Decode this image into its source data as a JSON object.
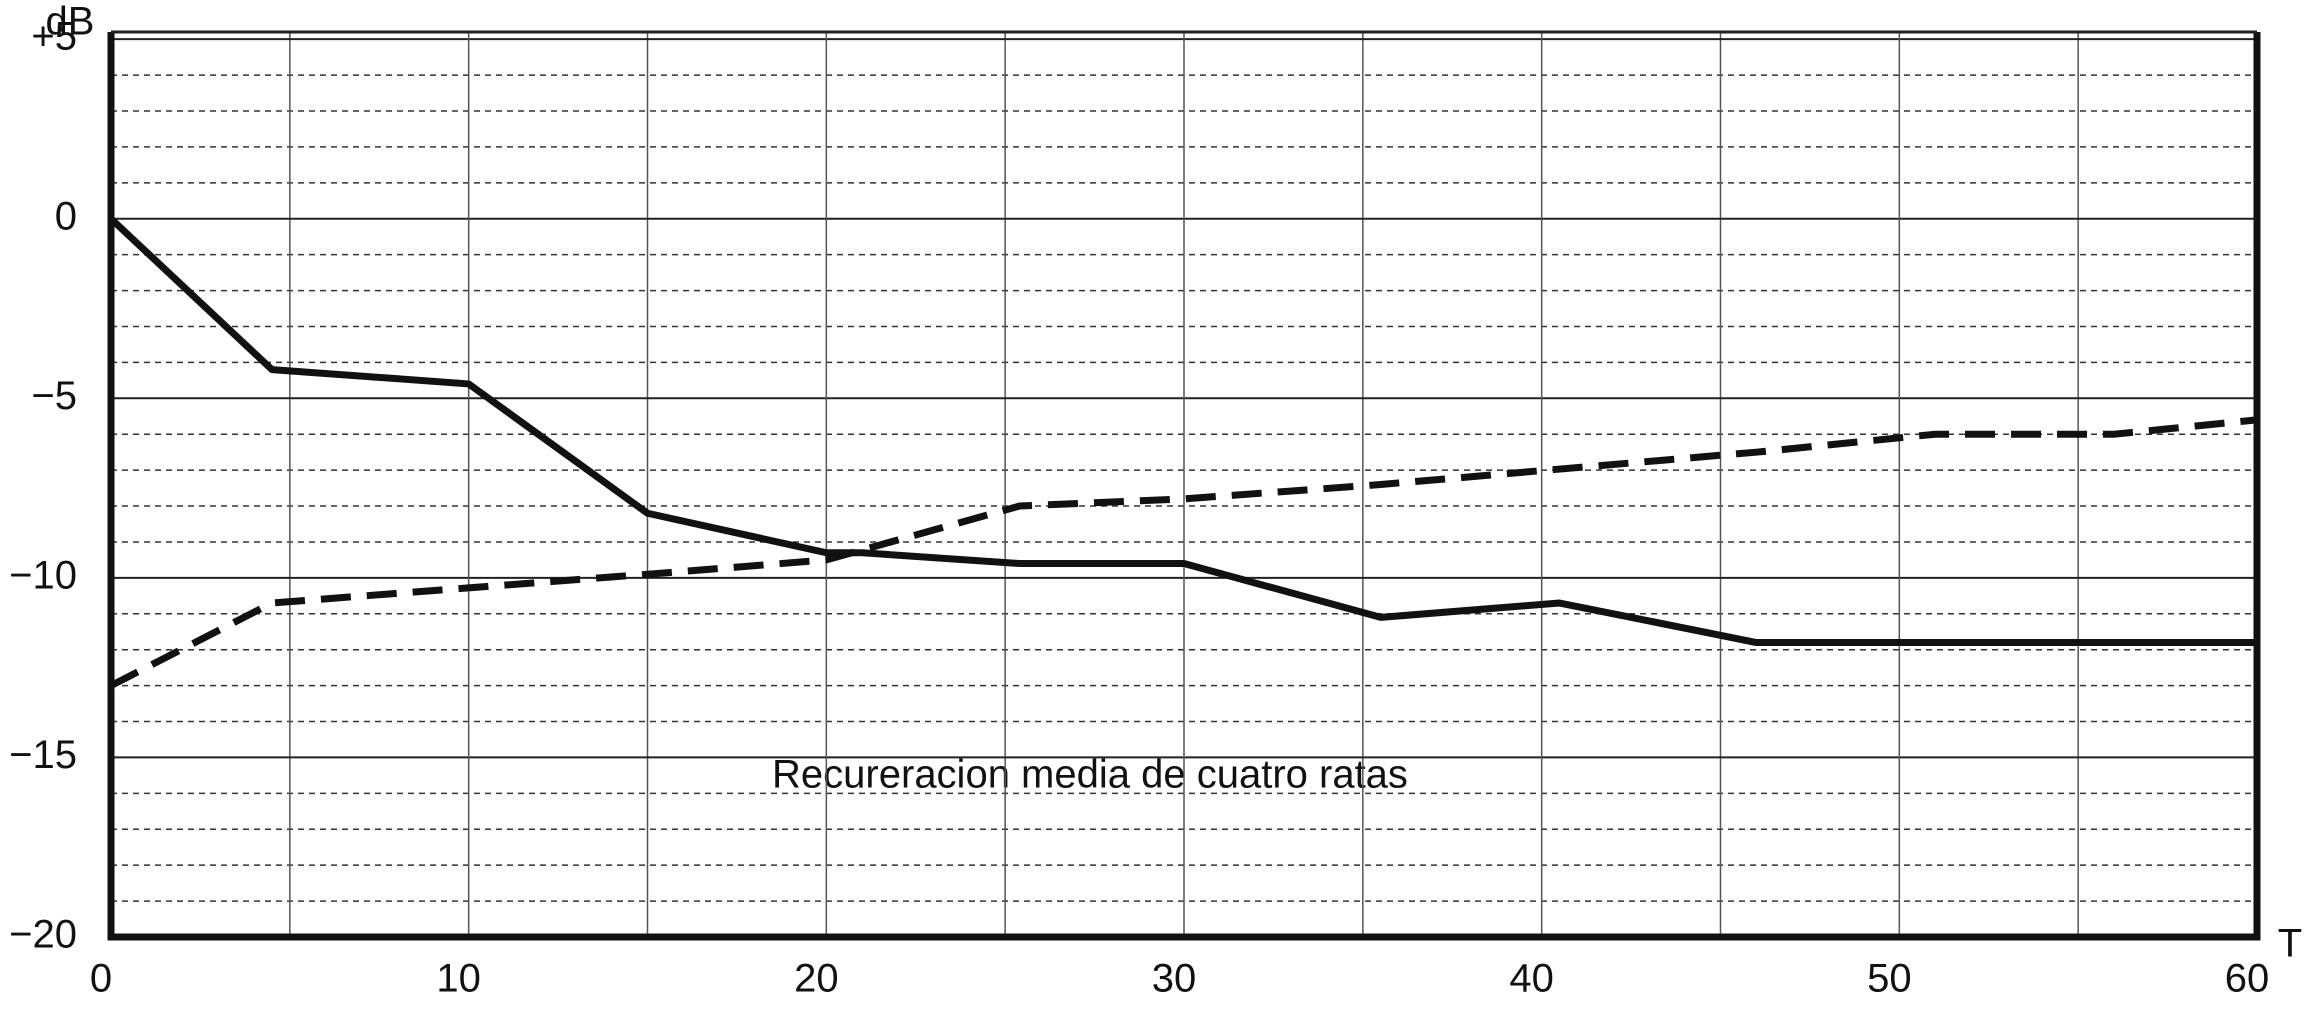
{
  "chart_data": {
    "type": "line",
    "y_label": "dB",
    "x_label": "T",
    "annotation": "Recureracion media de cuatro ratas",
    "xlim": [
      0,
      60
    ],
    "xticks": [
      0,
      10,
      20,
      30,
      40,
      50,
      60
    ],
    "ylim": [
      -20,
      5.2
    ],
    "yticks": [
      {
        "value": -20,
        "label": "−20"
      },
      {
        "value": -15,
        "label": "−15"
      },
      {
        "value": -10,
        "label": "−10"
      },
      {
        "value": -5,
        "label": "−5"
      },
      0,
      {
        "value": 5,
        "label": "+5"
      }
    ],
    "grid": true,
    "series": [
      {
        "color": "#111111",
        "style": "solid",
        "x": [
          0,
          4.5,
          10,
          15,
          20,
          21,
          25.4,
          30,
          35.5,
          40.5,
          46,
          60
        ],
        "values": [
          0,
          -4.2,
          -4.6,
          -8.2,
          -9.3,
          -9.3,
          -9.6,
          -9.6,
          -11.1,
          -10.7,
          -11.8,
          -11.8
        ]
      },
      {
        "color": "#111111",
        "style": "dashed",
        "x": [
          0,
          4.5,
          9.7,
          15,
          20,
          25.4,
          30,
          35.5,
          46,
          51,
          56,
          60
        ],
        "values": [
          -13,
          -10.7,
          -10.3,
          -9.9,
          -9.5,
          -8.0,
          -7.8,
          -7.4,
          -6.5,
          -6.0,
          -6.0,
          -5.6
        ]
      }
    ]
  }
}
